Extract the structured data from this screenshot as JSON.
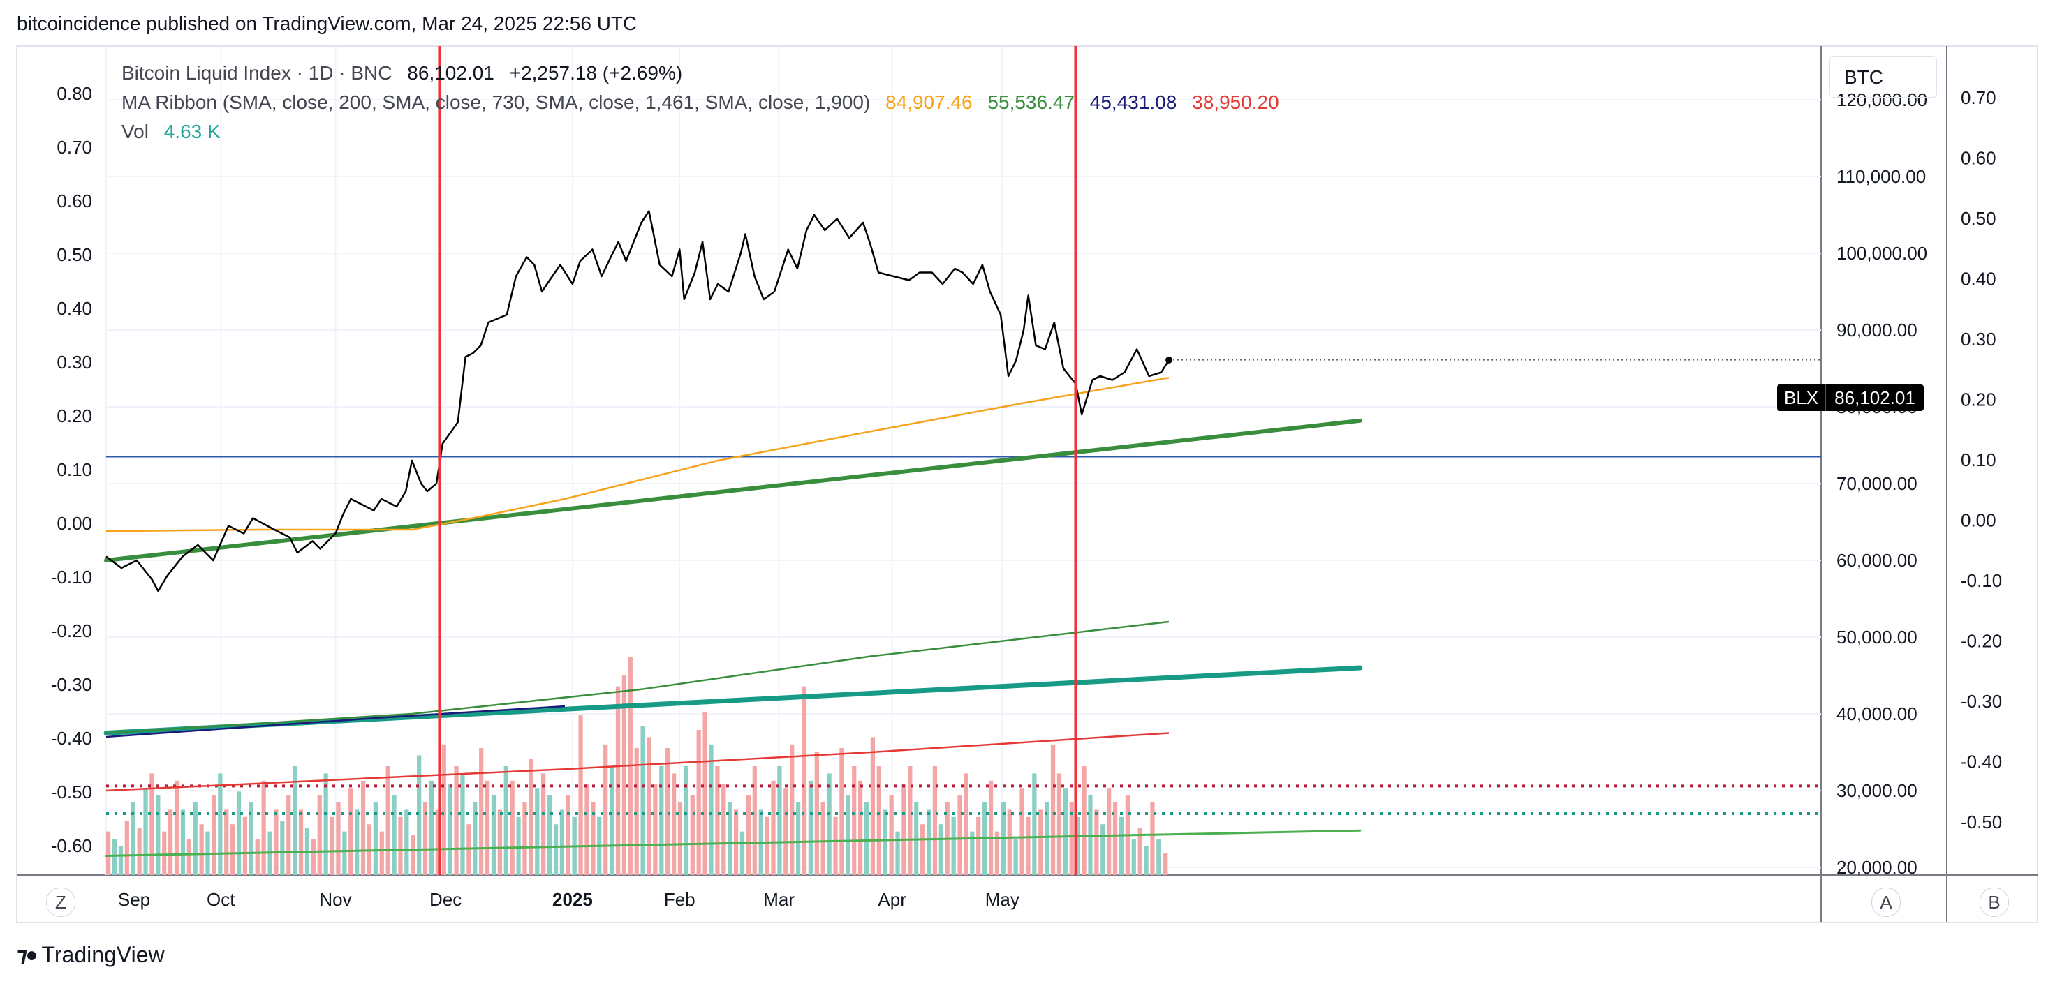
{
  "header": {
    "published": "bitcoincidence published on TradingView.com, Mar 24, 2025 22:56 UTC"
  },
  "legend": {
    "symbol": "Bitcoin Liquid Index · 1D · BNC",
    "last": "86,102.01",
    "change": "+2,257.18 (+2.69%)",
    "ma_label": "MA Ribbon (SMA, close, 200, SMA, close, 730, SMA, close, 1,461, SMA, close, 1,900)",
    "ma_values": [
      {
        "text": "84,907.46",
        "color": "#f7a21b"
      },
      {
        "text": "55,536.47",
        "color": "#388e3c"
      },
      {
        "text": "45,431.08",
        "color": "#1a1a7a"
      },
      {
        "text": "38,950.20",
        "color": "#e53935"
      }
    ],
    "vol_label": "Vol",
    "vol_value": "4.63 K",
    "vol_color": "#26a69a"
  },
  "right_panel": {
    "currency": "BTC",
    "price_symbol": "BLX",
    "price_value": "86,102.01"
  },
  "bottom": {
    "left_button": "Z",
    "mid_button": "A",
    "right_button": "B",
    "brand": "TradingView"
  },
  "chart_data": {
    "type": "line",
    "title": "Bitcoin Liquid Index · 1D · BNC",
    "x_ticks": [
      "Sep",
      "Oct",
      "Nov",
      "Dec",
      "2025",
      "Feb",
      "Mar",
      "Apr",
      "May"
    ],
    "price_axis": {
      "ticks": [
        "20,000.00",
        "30,000.00",
        "40,000.00",
        "50,000.00",
        "60,000.00",
        "70,000.00",
        "80,000.00",
        "90,000.00",
        "100,000.00",
        "110,000.00",
        "120,000.00"
      ],
      "range": [
        19000,
        127000
      ]
    },
    "left_axis": {
      "ticks": [
        "0.80",
        "0.70",
        "0.60",
        "0.50",
        "0.40",
        "0.30",
        "0.20",
        "0.10",
        "0.00",
        "-0.10",
        "-0.20",
        "-0.30",
        "-0.40",
        "-0.50",
        "-0.60"
      ]
    },
    "far_right_axis": {
      "ticks": [
        "0.70",
        "0.60",
        "0.50",
        "0.40",
        "0.30",
        "0.20",
        "0.10",
        "0.00",
        "-0.10",
        "-0.20",
        "-0.30",
        "-0.40",
        "-0.50"
      ]
    },
    "price_series": {
      "name": "Bitcoin Liquid Index",
      "color": "#000000",
      "points": [
        [
          0,
          60500
        ],
        [
          10,
          59000
        ],
        [
          20,
          60000
        ],
        [
          30,
          57500
        ],
        [
          34,
          56000
        ],
        [
          40,
          58000
        ],
        [
          50,
          60500
        ],
        [
          60,
          62000
        ],
        [
          70,
          60000
        ],
        [
          80,
          64500
        ],
        [
          90,
          63500
        ],
        [
          96,
          65500
        ],
        [
          110,
          64000
        ],
        [
          120,
          63000
        ],
        [
          125,
          61000
        ],
        [
          135,
          62500
        ],
        [
          140,
          61500
        ],
        [
          150,
          63500
        ],
        [
          155,
          66000
        ],
        [
          160,
          68000
        ],
        [
          165,
          67500
        ],
        [
          175,
          66500
        ],
        [
          180,
          68000
        ],
        [
          190,
          67000
        ],
        [
          196,
          69000
        ],
        [
          200,
          73000
        ],
        [
          206,
          70000
        ],
        [
          210,
          69000
        ],
        [
          216,
          70000
        ],
        [
          220,
          75200
        ],
        [
          230,
          78000
        ],
        [
          235,
          86500
        ],
        [
          240,
          87000
        ],
        [
          245,
          88000
        ],
        [
          250,
          91000
        ],
        [
          262,
          92000
        ],
        [
          268,
          97000
        ],
        [
          275,
          99500
        ],
        [
          280,
          98500
        ],
        [
          285,
          95000
        ],
        [
          290,
          96500
        ],
        [
          297,
          98500
        ],
        [
          305,
          96000
        ],
        [
          310,
          99000
        ],
        [
          318,
          100500
        ],
        [
          324,
          97000
        ],
        [
          330,
          99500
        ],
        [
          335,
          101500
        ],
        [
          340,
          99000
        ],
        [
          350,
          104000
        ],
        [
          355,
          105500
        ],
        [
          362,
          98500
        ],
        [
          370,
          97000
        ],
        [
          375,
          100500
        ],
        [
          378,
          94000
        ],
        [
          385,
          97500
        ],
        [
          390,
          101500
        ],
        [
          395,
          94000
        ],
        [
          400,
          96000
        ],
        [
          407,
          95000
        ],
        [
          415,
          100000
        ],
        [
          418,
          102500
        ],
        [
          424,
          97000
        ],
        [
          430,
          94000
        ],
        [
          437,
          95000
        ],
        [
          446,
          100500
        ],
        [
          452,
          98000
        ],
        [
          458,
          103000
        ],
        [
          463,
          105000
        ],
        [
          470,
          103000
        ],
        [
          478,
          104500
        ],
        [
          486,
          102000
        ],
        [
          495,
          104000
        ],
        [
          500,
          101000
        ],
        [
          505,
          97500
        ],
        [
          515,
          97000
        ],
        [
          525,
          96500
        ],
        [
          532,
          97500
        ],
        [
          540,
          97500
        ],
        [
          547,
          96000
        ],
        [
          555,
          98000
        ],
        [
          560,
          97500
        ],
        [
          567,
          96000
        ],
        [
          573,
          98500
        ],
        [
          578,
          95000
        ],
        [
          585,
          92000
        ],
        [
          590,
          84000
        ],
        [
          595,
          86000
        ],
        [
          600,
          90000
        ],
        [
          603,
          94500
        ],
        [
          608,
          88000
        ],
        [
          614,
          87500
        ],
        [
          620,
          91000
        ],
        [
          626,
          85000
        ],
        [
          634,
          83000
        ],
        [
          638,
          79000
        ],
        [
          645,
          83500
        ],
        [
          650,
          84000
        ],
        [
          658,
          83500
        ],
        [
          666,
          84500
        ],
        [
          674,
          87500
        ],
        [
          682,
          84000
        ],
        [
          690,
          84500
        ],
        [
          695,
          86100
        ]
      ],
      "last": 86102.01
    },
    "ma_series": [
      {
        "name": "SMA 200",
        "color": "#f7a21b",
        "points": [
          [
            0,
            63800
          ],
          [
            100,
            64000
          ],
          [
            200,
            64000
          ],
          [
            240,
            65500
          ],
          [
            300,
            68000
          ],
          [
            400,
            73000
          ],
          [
            500,
            76800
          ],
          [
            600,
            80500
          ],
          [
            695,
            83800
          ]
        ]
      },
      {
        "name": "SMA 730",
        "color": "#388e3c",
        "points": [
          [
            0,
            37500
          ],
          [
            200,
            40000
          ],
          [
            350,
            43200
          ],
          [
            500,
            47500
          ],
          [
            695,
            52000
          ]
        ]
      },
      {
        "name": "SMA 1461",
        "color": "#1a1a7a",
        "points": [
          [
            0,
            37000
          ],
          [
            180,
            39500
          ],
          [
            300,
            41000
          ]
        ]
      },
      {
        "name": "SMA 1900",
        "color": "#e53935",
        "points": [
          [
            0,
            30000
          ],
          [
            300,
            32800
          ],
          [
            500,
            35000
          ],
          [
            695,
            37500
          ]
        ]
      }
    ],
    "trend_lines": [
      {
        "color": "#388e3c",
        "width": 6,
        "from": [
          0,
          60000
        ],
        "to": [
          820,
          78200
        ]
      },
      {
        "color": "#179b86",
        "width": 7,
        "from": [
          0,
          37500
        ],
        "to": [
          820,
          46000
        ]
      },
      {
        "color": "#4caf50",
        "width": 3,
        "from": [
          0,
          21500
        ],
        "to": [
          820,
          24800
        ]
      }
    ],
    "horizontal_lines": [
      {
        "color": "#2f5aa8",
        "width": 2,
        "value": 73500,
        "dash": ""
      },
      {
        "color": "#b71c3a",
        "width": 4,
        "value": 30600,
        "dash": "4,8"
      },
      {
        "color": "#179b86",
        "width": 4,
        "value": 27000,
        "dash": "4,8"
      }
    ],
    "vertical_markers": [
      {
        "day": 218,
        "color": "#f0323a"
      },
      {
        "day": 634,
        "color": "#f0323a"
      }
    ],
    "volume": {
      "up_color": "#89cfc4",
      "down_color": "#f4a6a6",
      "bars": [
        [
          0.12,
          0
        ],
        [
          0.1,
          1
        ],
        [
          0.08,
          1
        ],
        [
          0.15,
          0
        ],
        [
          0.2,
          1
        ],
        [
          0.13,
          0
        ],
        [
          0.24,
          1
        ],
        [
          0.28,
          0
        ],
        [
          0.22,
          1
        ],
        [
          0.12,
          0
        ],
        [
          0.18,
          0
        ],
        [
          0.26,
          0
        ],
        [
          0.18,
          1
        ],
        [
          0.1,
          0
        ],
        [
          0.2,
          1
        ],
        [
          0.14,
          0
        ],
        [
          0.12,
          1
        ],
        [
          0.22,
          0
        ],
        [
          0.28,
          1
        ],
        [
          0.18,
          0
        ],
        [
          0.14,
          0
        ],
        [
          0.23,
          1
        ],
        [
          0.16,
          0
        ],
        [
          0.2,
          1
        ],
        [
          0.1,
          0
        ],
        [
          0.26,
          0
        ],
        [
          0.12,
          1
        ],
        [
          0.18,
          0
        ],
        [
          0.15,
          1
        ],
        [
          0.22,
          0
        ],
        [
          0.3,
          1
        ],
        [
          0.18,
          0
        ],
        [
          0.13,
          1
        ],
        [
          0.1,
          0
        ],
        [
          0.22,
          0
        ],
        [
          0.28,
          1
        ],
        [
          0.16,
          0
        ],
        [
          0.2,
          0
        ],
        [
          0.12,
          1
        ],
        [
          0.24,
          0
        ],
        [
          0.18,
          1
        ],
        [
          0.26,
          0
        ],
        [
          0.14,
          0
        ],
        [
          0.2,
          1
        ],
        [
          0.12,
          0
        ],
        [
          0.3,
          0
        ],
        [
          0.22,
          1
        ],
        [
          0.16,
          0
        ],
        [
          0.18,
          1
        ],
        [
          0.11,
          0
        ],
        [
          0.33,
          1
        ],
        [
          0.2,
          0
        ],
        [
          0.26,
          1
        ],
        [
          0.18,
          0
        ],
        [
          0.36,
          0
        ],
        [
          0.25,
          1
        ],
        [
          0.3,
          0
        ],
        [
          0.28,
          1
        ],
        [
          0.14,
          0
        ],
        [
          0.2,
          1
        ],
        [
          0.35,
          0
        ],
        [
          0.26,
          0
        ],
        [
          0.22,
          1
        ],
        [
          0.18,
          0
        ],
        [
          0.3,
          1
        ],
        [
          0.26,
          0
        ],
        [
          0.16,
          1
        ],
        [
          0.2,
          0
        ],
        [
          0.32,
          0
        ],
        [
          0.24,
          1
        ],
        [
          0.28,
          0
        ],
        [
          0.22,
          1
        ],
        [
          0.14,
          1
        ],
        [
          0.18,
          1
        ],
        [
          0.22,
          0
        ],
        [
          0.16,
          1
        ],
        [
          0.44,
          0
        ],
        [
          0.25,
          0
        ],
        [
          0.2,
          0
        ],
        [
          0.16,
          1
        ],
        [
          0.36,
          0
        ],
        [
          0.3,
          1
        ],
        [
          0.52,
          0
        ],
        [
          0.55,
          0
        ],
        [
          0.6,
          0
        ],
        [
          0.35,
          0
        ],
        [
          0.41,
          1
        ],
        [
          0.38,
          0
        ],
        [
          0.25,
          0
        ],
        [
          0.3,
          1
        ],
        [
          0.35,
          0
        ],
        [
          0.28,
          0
        ],
        [
          0.2,
          0
        ],
        [
          0.3,
          1
        ],
        [
          0.22,
          0
        ],
        [
          0.4,
          0
        ],
        [
          0.45,
          0
        ],
        [
          0.36,
          1
        ],
        [
          0.3,
          0
        ],
        [
          0.25,
          0
        ],
        [
          0.2,
          1
        ],
        [
          0.18,
          0
        ],
        [
          0.12,
          1
        ],
        [
          0.22,
          0
        ],
        [
          0.3,
          0
        ],
        [
          0.18,
          1
        ],
        [
          0.16,
          0
        ],
        [
          0.26,
          0
        ],
        [
          0.3,
          1
        ],
        [
          0.24,
          0
        ],
        [
          0.36,
          0
        ],
        [
          0.2,
          1
        ],
        [
          0.52,
          0
        ],
        [
          0.26,
          1
        ],
        [
          0.34,
          0
        ],
        [
          0.2,
          0
        ],
        [
          0.28,
          1
        ],
        [
          0.16,
          0
        ],
        [
          0.35,
          0
        ],
        [
          0.22,
          1
        ],
        [
          0.3,
          0
        ],
        [
          0.26,
          0
        ],
        [
          0.2,
          1
        ],
        [
          0.38,
          0
        ],
        [
          0.3,
          0
        ],
        [
          0.18,
          1
        ],
        [
          0.22,
          0
        ],
        [
          0.12,
          1
        ],
        [
          0.25,
          0
        ],
        [
          0.3,
          0
        ],
        [
          0.2,
          1
        ],
        [
          0.14,
          0
        ],
        [
          0.18,
          1
        ],
        [
          0.3,
          0
        ],
        [
          0.14,
          1
        ],
        [
          0.2,
          0
        ],
        [
          0.16,
          1
        ],
        [
          0.22,
          0
        ],
        [
          0.28,
          0
        ],
        [
          0.12,
          1
        ],
        [
          0.16,
          0
        ],
        [
          0.2,
          1
        ],
        [
          0.26,
          0
        ],
        [
          0.12,
          0
        ],
        [
          0.2,
          1
        ],
        [
          0.18,
          0
        ],
        [
          0.1,
          1
        ],
        [
          0.24,
          0
        ],
        [
          0.16,
          0
        ],
        [
          0.28,
          1
        ],
        [
          0.18,
          0
        ],
        [
          0.2,
          1
        ],
        [
          0.36,
          0
        ],
        [
          0.28,
          0
        ],
        [
          0.24,
          1
        ],
        [
          0.2,
          0
        ],
        [
          0.16,
          1
        ],
        [
          0.3,
          0
        ],
        [
          0.22,
          1
        ],
        [
          0.18,
          0
        ],
        [
          0.14,
          1
        ],
        [
          0.24,
          0
        ],
        [
          0.2,
          0
        ],
        [
          0.16,
          1
        ],
        [
          0.22,
          0
        ],
        [
          0.1,
          1
        ],
        [
          0.13,
          0
        ],
        [
          0.08,
          1
        ],
        [
          0.2,
          0
        ],
        [
          0.1,
          1
        ],
        [
          0.06,
          0
        ]
      ]
    }
  }
}
